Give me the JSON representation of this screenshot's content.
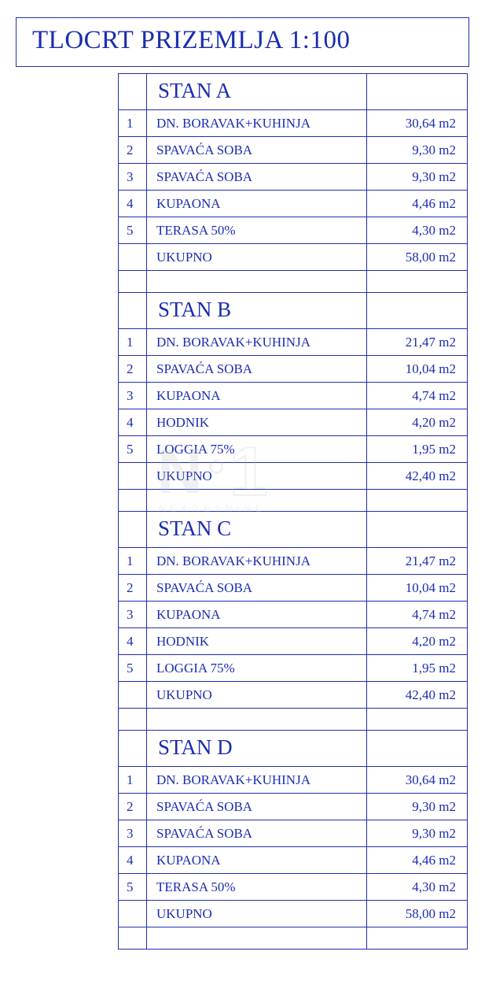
{
  "colors": {
    "line": "#1e2fb3",
    "text": "#1a2db0",
    "background": "#ffffff",
    "watermark": "#bcbcbc"
  },
  "title": "TLOCRT PRIZEMLJA 1:100",
  "unit": "m2",
  "total_label": "UKUPNO",
  "sections": [
    {
      "name": "STAN A",
      "rows": [
        {
          "n": "1",
          "desc": "DN. BORAVAK+KUHINJA",
          "area": "30,64 m2"
        },
        {
          "n": "2",
          "desc": "SPAVAĆA SOBA",
          "area": "9,30 m2"
        },
        {
          "n": "3",
          "desc": "SPAVAĆA SOBA",
          "area": "9,30 m2"
        },
        {
          "n": "4",
          "desc": "KUPAONA",
          "area": "4,46 m2"
        },
        {
          "n": "5",
          "desc": "TERASA 50%",
          "area": "4,30 m2"
        }
      ],
      "total": "58,00 m2"
    },
    {
      "name": "STAN B",
      "rows": [
        {
          "n": "1",
          "desc": "DN. BORAVAK+KUHINJA",
          "area": "21,47 m2"
        },
        {
          "n": "2",
          "desc": "SPAVAĆA SOBA",
          "area": "10,04 m2"
        },
        {
          "n": "3",
          "desc": "KUPAONA",
          "area": "4,74 m2"
        },
        {
          "n": "4",
          "desc": "HODNIK",
          "area": "4,20 m2"
        },
        {
          "n": "5",
          "desc": "LOGGIA 75%",
          "area": "1,95 m2"
        }
      ],
      "total": "42,40 m2"
    },
    {
      "name": "STAN C",
      "rows": [
        {
          "n": "1",
          "desc": "DN. BORAVAK+KUHINJA",
          "area": "21,47 m2"
        },
        {
          "n": "2",
          "desc": "SPAVAĆA SOBA",
          "area": "10,04 m2"
        },
        {
          "n": "3",
          "desc": "KUPAONA",
          "area": "4,74 m2"
        },
        {
          "n": "4",
          "desc": "HODNIK",
          "area": "4,20 m2"
        },
        {
          "n": "5",
          "desc": "LOGGIA 75%",
          "area": "1,95 m2"
        }
      ],
      "total": "42,40 m2"
    },
    {
      "name": "STAN D",
      "rows": [
        {
          "n": "1",
          "desc": "DN. BORAVAK+KUHINJA",
          "area": "30,64 m2"
        },
        {
          "n": "2",
          "desc": "SPAVAĆA SOBA",
          "area": "9,30 m2"
        },
        {
          "n": "3",
          "desc": "SPAVAĆA SOBA",
          "area": "9,30 m2"
        },
        {
          "n": "4",
          "desc": "KUPAONA",
          "area": "4,46 m2"
        },
        {
          "n": "5",
          "desc": "TERASA 50%",
          "area": "4,30 m2"
        }
      ],
      "total": "58,00 m2"
    }
  ],
  "watermark": {
    "brand_letter": "N",
    "brand_digit": "1",
    "subline": "NEKRETNINE"
  }
}
